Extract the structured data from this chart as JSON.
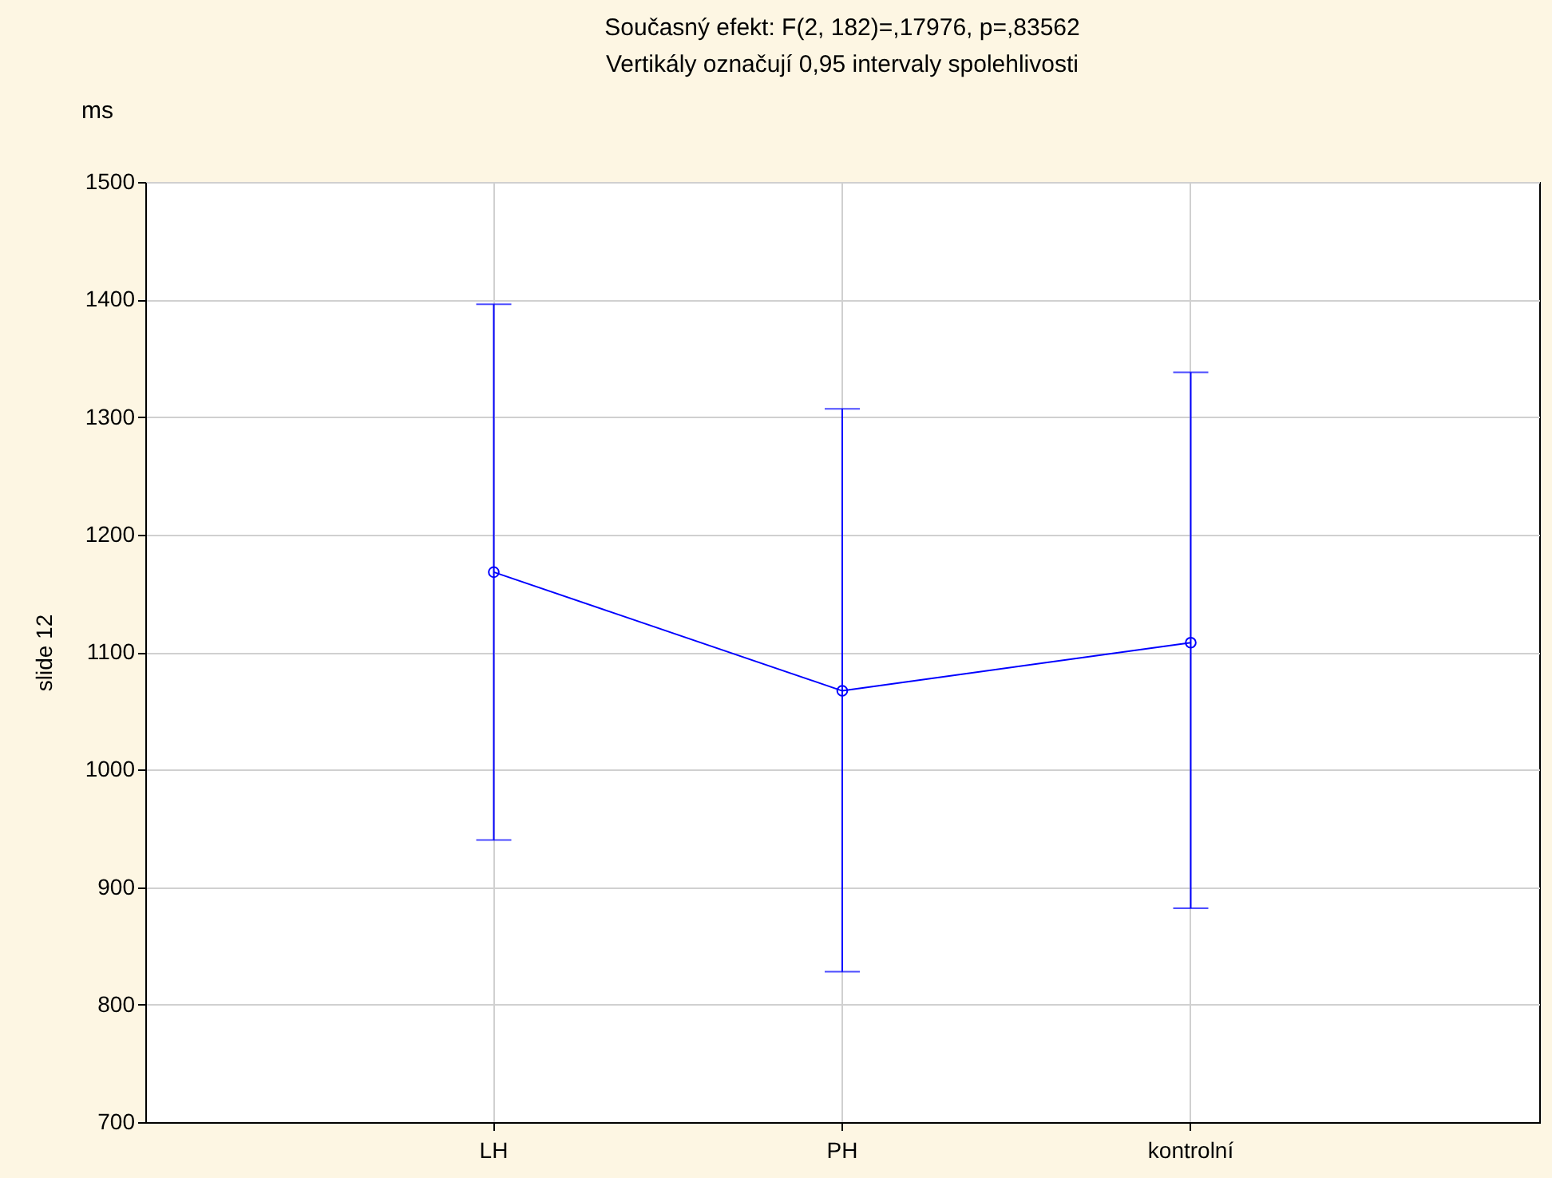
{
  "chart_data": {
    "type": "line",
    "title": "Současný efekt: F(2, 182)=,17976, p=,83562",
    "subtitle": "Vertikály označují 0,95 intervaly spolehlivosti",
    "ylabel": "slide 12",
    "annotations": [
      "ms"
    ],
    "categories": [
      "LH",
      "PH",
      "kontrolní"
    ],
    "series": [
      {
        "color": "#0000ff",
        "values": [
          1168,
          1067,
          1108
        ],
        "errors": [
          [
            940,
            1396
          ],
          [
            828,
            1307
          ],
          [
            882,
            1338
          ]
        ]
      }
    ],
    "ylim": [
      700,
      1500
    ],
    "yticks": [
      700,
      800,
      900,
      1000,
      1100,
      1200,
      1300,
      1400,
      1500
    ],
    "grid": true,
    "marker": "circle",
    "line_style": "solid"
  }
}
